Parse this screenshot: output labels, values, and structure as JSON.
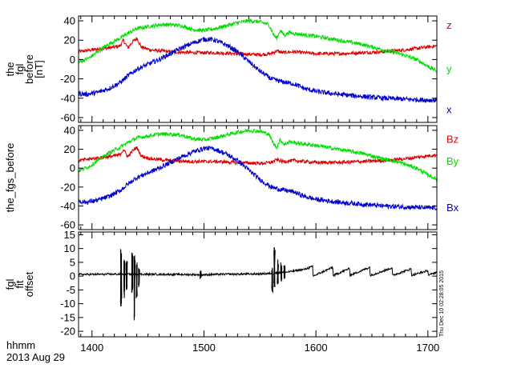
{
  "colors": {
    "x": "#0000cc",
    "y": "#00dd00",
    "z": "#dd0000",
    "offset": "#000000",
    "axes": "#000000"
  },
  "footer": {
    "time_label": "hhmm",
    "date_label": "2013 Aug 29"
  },
  "timestamp": "Thu Dec 10 02:28:05 2015",
  "chart_data": [
    {
      "type": "line",
      "id": "panel1",
      "ylabel": [
        "the",
        "fgl",
        "before",
        "[nT]"
      ],
      "ylim": [
        -65,
        45
      ],
      "yticks": [
        -60,
        -40,
        -20,
        0,
        20,
        40
      ],
      "xlim": [
        1388,
        1708
      ],
      "xticks": [
        1400,
        1500,
        1600,
        1700
      ],
      "show_xtick_labels": false,
      "series": [
        {
          "name": "z",
          "color_key": "z",
          "noise": 1.8,
          "points": [
            [
              1388,
              8
            ],
            [
              1400,
              10
            ],
            [
              1415,
              12
            ],
            [
              1425,
              14
            ],
            [
              1428,
              20
            ],
            [
              1432,
              12
            ],
            [
              1436,
              18
            ],
            [
              1440,
              22
            ],
            [
              1444,
              13
            ],
            [
              1452,
              10
            ],
            [
              1470,
              8
            ],
            [
              1490,
              7
            ],
            [
              1510,
              7
            ],
            [
              1530,
              6
            ],
            [
              1550,
              5
            ],
            [
              1560,
              6
            ],
            [
              1565,
              9
            ],
            [
              1570,
              7
            ],
            [
              1580,
              8
            ],
            [
              1600,
              6
            ],
            [
              1620,
              6
            ],
            [
              1640,
              7
            ],
            [
              1660,
              8
            ],
            [
              1680,
              10
            ],
            [
              1700,
              13
            ],
            [
              1708,
              14
            ]
          ]
        },
        {
          "name": "y",
          "color_key": "y",
          "noise": 2.0,
          "points": [
            [
              1388,
              -3
            ],
            [
              1398,
              2
            ],
            [
              1405,
              8
            ],
            [
              1415,
              16
            ],
            [
              1425,
              22
            ],
            [
              1432,
              27
            ],
            [
              1440,
              32
            ],
            [
              1450,
              34
            ],
            [
              1460,
              36
            ],
            [
              1470,
              36
            ],
            [
              1480,
              35
            ],
            [
              1490,
              31
            ],
            [
              1500,
              30
            ],
            [
              1510,
              32
            ],
            [
              1520,
              35
            ],
            [
              1530,
              38
            ],
            [
              1540,
              40
            ],
            [
              1550,
              39
            ],
            [
              1558,
              36
            ],
            [
              1562,
              26
            ],
            [
              1565,
              22
            ],
            [
              1568,
              30
            ],
            [
              1572,
              25
            ],
            [
              1576,
              28
            ],
            [
              1580,
              27
            ],
            [
              1600,
              24
            ],
            [
              1620,
              20
            ],
            [
              1640,
              16
            ],
            [
              1660,
              10
            ],
            [
              1675,
              6
            ],
            [
              1690,
              0
            ],
            [
              1700,
              -7
            ],
            [
              1708,
              -12
            ]
          ]
        },
        {
          "name": "x",
          "color_key": "x",
          "noise": 2.5,
          "points": [
            [
              1388,
              -35
            ],
            [
              1395,
              -36
            ],
            [
              1405,
              -34
            ],
            [
              1415,
              -30
            ],
            [
              1425,
              -24
            ],
            [
              1432,
              -17
            ],
            [
              1440,
              -10
            ],
            [
              1450,
              -5
            ],
            [
              1460,
              0
            ],
            [
              1470,
              6
            ],
            [
              1480,
              12
            ],
            [
              1490,
              17
            ],
            [
              1500,
              21
            ],
            [
              1505,
              21
            ],
            [
              1510,
              20
            ],
            [
              1520,
              15
            ],
            [
              1530,
              8
            ],
            [
              1540,
              -2
            ],
            [
              1550,
              -12
            ],
            [
              1560,
              -20
            ],
            [
              1570,
              -23
            ],
            [
              1580,
              -25
            ],
            [
              1590,
              -30
            ],
            [
              1600,
              -33
            ],
            [
              1620,
              -36
            ],
            [
              1640,
              -38
            ],
            [
              1660,
              -40
            ],
            [
              1680,
              -41
            ],
            [
              1700,
              -42
            ],
            [
              1708,
              -42
            ]
          ]
        }
      ],
      "legend": [
        {
          "label": "z",
          "value": 35,
          "color_key": "z"
        },
        {
          "label": "y",
          "value": -10,
          "color_key": "y"
        },
        {
          "label": "x",
          "value": -52,
          "color_key": "x"
        }
      ]
    },
    {
      "type": "line",
      "id": "panel2",
      "ylabel": [
        "the_fgs_before"
      ],
      "ylim": [
        -65,
        45
      ],
      "yticks": [
        -60,
        -40,
        -20,
        0,
        20,
        40
      ],
      "xlim": [
        1388,
        1708
      ],
      "xticks": [
        1400,
        1500,
        1600,
        1700
      ],
      "show_xtick_labels": false,
      "series": [
        {
          "name": "Bz",
          "color_key": "z",
          "noise": 1.8,
          "points": [
            [
              1388,
              8
            ],
            [
              1400,
              10
            ],
            [
              1415,
              12
            ],
            [
              1425,
              14
            ],
            [
              1428,
              20
            ],
            [
              1432,
              12
            ],
            [
              1436,
              18
            ],
            [
              1440,
              22
            ],
            [
              1444,
              13
            ],
            [
              1452,
              10
            ],
            [
              1470,
              8
            ],
            [
              1490,
              7
            ],
            [
              1510,
              7
            ],
            [
              1530,
              6
            ],
            [
              1550,
              5
            ],
            [
              1560,
              6
            ],
            [
              1565,
              9
            ],
            [
              1570,
              7
            ],
            [
              1580,
              8
            ],
            [
              1600,
              6
            ],
            [
              1620,
              6
            ],
            [
              1640,
              7
            ],
            [
              1660,
              8
            ],
            [
              1680,
              10
            ],
            [
              1700,
              13
            ],
            [
              1708,
              14
            ]
          ]
        },
        {
          "name": "By",
          "color_key": "y",
          "noise": 2.0,
          "points": [
            [
              1388,
              -3
            ],
            [
              1398,
              2
            ],
            [
              1405,
              8
            ],
            [
              1415,
              16
            ],
            [
              1425,
              22
            ],
            [
              1432,
              27
            ],
            [
              1440,
              32
            ],
            [
              1450,
              34
            ],
            [
              1460,
              36
            ],
            [
              1470,
              36
            ],
            [
              1480,
              35
            ],
            [
              1490,
              31
            ],
            [
              1500,
              30
            ],
            [
              1510,
              32
            ],
            [
              1520,
              35
            ],
            [
              1530,
              38
            ],
            [
              1540,
              40
            ],
            [
              1550,
              39
            ],
            [
              1558,
              36
            ],
            [
              1562,
              26
            ],
            [
              1565,
              22
            ],
            [
              1568,
              30
            ],
            [
              1572,
              25
            ],
            [
              1576,
              28
            ],
            [
              1580,
              27
            ],
            [
              1600,
              24
            ],
            [
              1620,
              20
            ],
            [
              1640,
              16
            ],
            [
              1660,
              10
            ],
            [
              1675,
              6
            ],
            [
              1690,
              0
            ],
            [
              1700,
              -7
            ],
            [
              1708,
              -12
            ]
          ]
        },
        {
          "name": "Bx",
          "color_key": "x",
          "noise": 2.5,
          "points": [
            [
              1388,
              -35
            ],
            [
              1395,
              -36
            ],
            [
              1405,
              -34
            ],
            [
              1415,
              -30
            ],
            [
              1425,
              -24
            ],
            [
              1432,
              -17
            ],
            [
              1440,
              -10
            ],
            [
              1450,
              -5
            ],
            [
              1460,
              0
            ],
            [
              1470,
              6
            ],
            [
              1480,
              12
            ],
            [
              1490,
              17
            ],
            [
              1500,
              21
            ],
            [
              1505,
              21
            ],
            [
              1510,
              20
            ],
            [
              1520,
              15
            ],
            [
              1530,
              8
            ],
            [
              1540,
              -2
            ],
            [
              1550,
              -12
            ],
            [
              1560,
              -20
            ],
            [
              1570,
              -23
            ],
            [
              1580,
              -25
            ],
            [
              1590,
              -30
            ],
            [
              1600,
              -33
            ],
            [
              1620,
              -36
            ],
            [
              1640,
              -38
            ],
            [
              1660,
              -40
            ],
            [
              1680,
              -41
            ],
            [
              1700,
              -42
            ],
            [
              1708,
              -42
            ]
          ]
        }
      ],
      "legend": [
        {
          "label": "Bz",
          "value": 30,
          "color_key": "z"
        },
        {
          "label": "By",
          "value": 7,
          "color_key": "y"
        },
        {
          "label": "Bx",
          "value": -42,
          "color_key": "x"
        }
      ]
    },
    {
      "type": "line",
      "id": "panel3",
      "ylabel": [
        "fgl",
        "fit",
        "offset"
      ],
      "ylim": [
        -22,
        16
      ],
      "yticks": [
        -20,
        -15,
        -10,
        -5,
        0,
        5,
        10,
        15
      ],
      "xlim": [
        1388,
        1708
      ],
      "xticks": [
        1400,
        1500,
        1600,
        1700
      ],
      "xtick_labels": [
        "1400",
        "1500",
        "1600",
        "1700"
      ],
      "show_xtick_labels": true,
      "series": [
        {
          "name": "offset",
          "color_key": "offset",
          "noise": 0.35,
          "points": [
            [
              1388,
              0.6
            ],
            [
              1420,
              0.7
            ],
            [
              1440,
              0.7
            ],
            [
              1480,
              0.6
            ],
            [
              1500,
              0.5
            ],
            [
              1520,
              0.7
            ],
            [
              1550,
              0.8
            ],
            [
              1560,
              1.0
            ],
            [
              1575,
              1.5
            ],
            [
              1590,
              2.5
            ],
            [
              1597,
              3.5
            ],
            [
              1597.5,
              0
            ],
            [
              1615,
              3.2
            ],
            [
              1615.5,
              0.2
            ],
            [
              1630,
              2.8
            ],
            [
              1630.5,
              0.3
            ],
            [
              1648,
              3.2
            ],
            [
              1648.5,
              0.2
            ],
            [
              1668,
              3.0
            ],
            [
              1668.5,
              0.3
            ],
            [
              1685,
              2.6
            ],
            [
              1685.5,
              0.3
            ],
            [
              1700,
              2.0
            ],
            [
              1700.5,
              0.3
            ],
            [
              1708,
              1.5
            ]
          ]
        }
      ],
      "spikes": [
        {
          "x": 1426,
          "ymin": -11,
          "ymax": 9.8
        },
        {
          "x": 1429,
          "ymin": -8,
          "ymax": 6
        },
        {
          "x": 1431,
          "ymin": -5,
          "ymax": 5.5
        },
        {
          "x": 1436,
          "ymin": -6,
          "ymax": 8.5
        },
        {
          "x": 1438,
          "ymin": -16,
          "ymax": 7.5
        },
        {
          "x": 1440,
          "ymin": -8,
          "ymax": 5
        },
        {
          "x": 1442,
          "ymin": -4,
          "ymax": 3
        },
        {
          "x": 1497,
          "ymin": -1,
          "ymax": 2
        },
        {
          "x": 1561,
          "ymin": -6,
          "ymax": 3
        },
        {
          "x": 1563,
          "ymin": -4,
          "ymax": 10.5
        },
        {
          "x": 1566,
          "ymin": -3,
          "ymax": 6
        },
        {
          "x": 1569,
          "ymin": -2,
          "ymax": 5
        },
        {
          "x": 1572,
          "ymin": -1,
          "ymax": 4
        }
      ],
      "legend": []
    }
  ]
}
